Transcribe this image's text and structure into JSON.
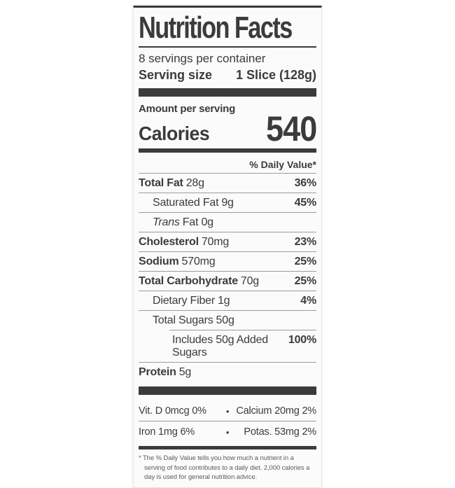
{
  "label": {
    "title": "Nutrition Facts",
    "servings_per_container": "8 servings per container",
    "serving_size_label": "Serving size",
    "serving_size_value": "1 Slice (128g)",
    "amount_per_serving": "Amount per serving",
    "calories_label": "Calories",
    "calories_value": "540",
    "daily_value_header": "% Daily Value*",
    "rows": [
      {
        "name": "Total Fat",
        "amount": "28g",
        "dv": "36%"
      },
      {
        "name": "Saturated Fat",
        "amount": "9g",
        "dv": "45%"
      },
      {
        "name": "Trans",
        "amount": "Fat 0g",
        "dv": ""
      },
      {
        "name": "Cholesterol",
        "amount": "70mg",
        "dv": "23%"
      },
      {
        "name": "Sodium",
        "amount": "570mg",
        "dv": "25%"
      },
      {
        "name": "Total Carbohydrate",
        "amount": "70g",
        "dv": "25%"
      },
      {
        "name": "Dietary Fiber",
        "amount": "1g",
        "dv": "4%"
      },
      {
        "name": "Total Sugars",
        "amount": "50g",
        "dv": ""
      },
      {
        "name": "Includes 50g Added Sugars",
        "amount": "",
        "dv": "100%"
      },
      {
        "name": "Protein",
        "amount": "5g",
        "dv": ""
      }
    ],
    "micronutrients": [
      {
        "left": "Vit. D 0mcg 0%",
        "right": "Calcium 20mg 2%"
      },
      {
        "left": "Iron 1mg 6%",
        "right": "Potas. 53mg 2%"
      }
    ],
    "bullet": "•",
    "footnote": "* The % Daily Value tells you how much a nutrient in a serving of food contributes to a daily diet. 2,000 calories a day is used for general nutrition advice.",
    "colors": {
      "ink": "#3b3b3e",
      "hairline": "#9b9ba1",
      "card_background": "#fbfbfc",
      "page_background": "#ffffff"
    }
  }
}
